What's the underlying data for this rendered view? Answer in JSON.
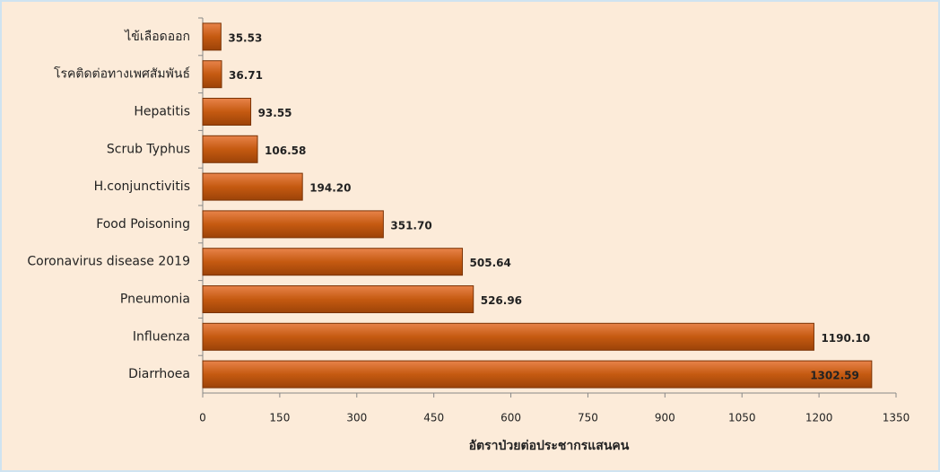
{
  "chart_data": {
    "type": "hbar",
    "categories": [
      "ไข้เลือดออก",
      "โรคติดต่อทางเพศสัมพันธ์",
      "Hepatitis",
      "Scrub Typhus",
      "H.conjunctivitis",
      "Food Poisoning",
      "Coronavirus disease 2019",
      "Pneumonia",
      "Influenza",
      "Diarrhoea"
    ],
    "values": [
      35.53,
      36.71,
      93.55,
      106.58,
      194.2,
      351.7,
      505.64,
      526.96,
      1190.1,
      1302.59
    ],
    "value_labels": [
      "35.53",
      "36.71",
      "93.55",
      "106.58",
      "194.20",
      "351.70",
      "505.64",
      "526.96",
      "1190.10",
      "1302.59"
    ],
    "color": "#c55a11",
    "xlim": [
      0,
      1350
    ],
    "xticks": [
      0,
      150,
      300,
      450,
      600,
      750,
      900,
      1050,
      1200,
      1350
    ],
    "x_label": "อัตราป่วยต่อประชากรแสนคน"
  }
}
